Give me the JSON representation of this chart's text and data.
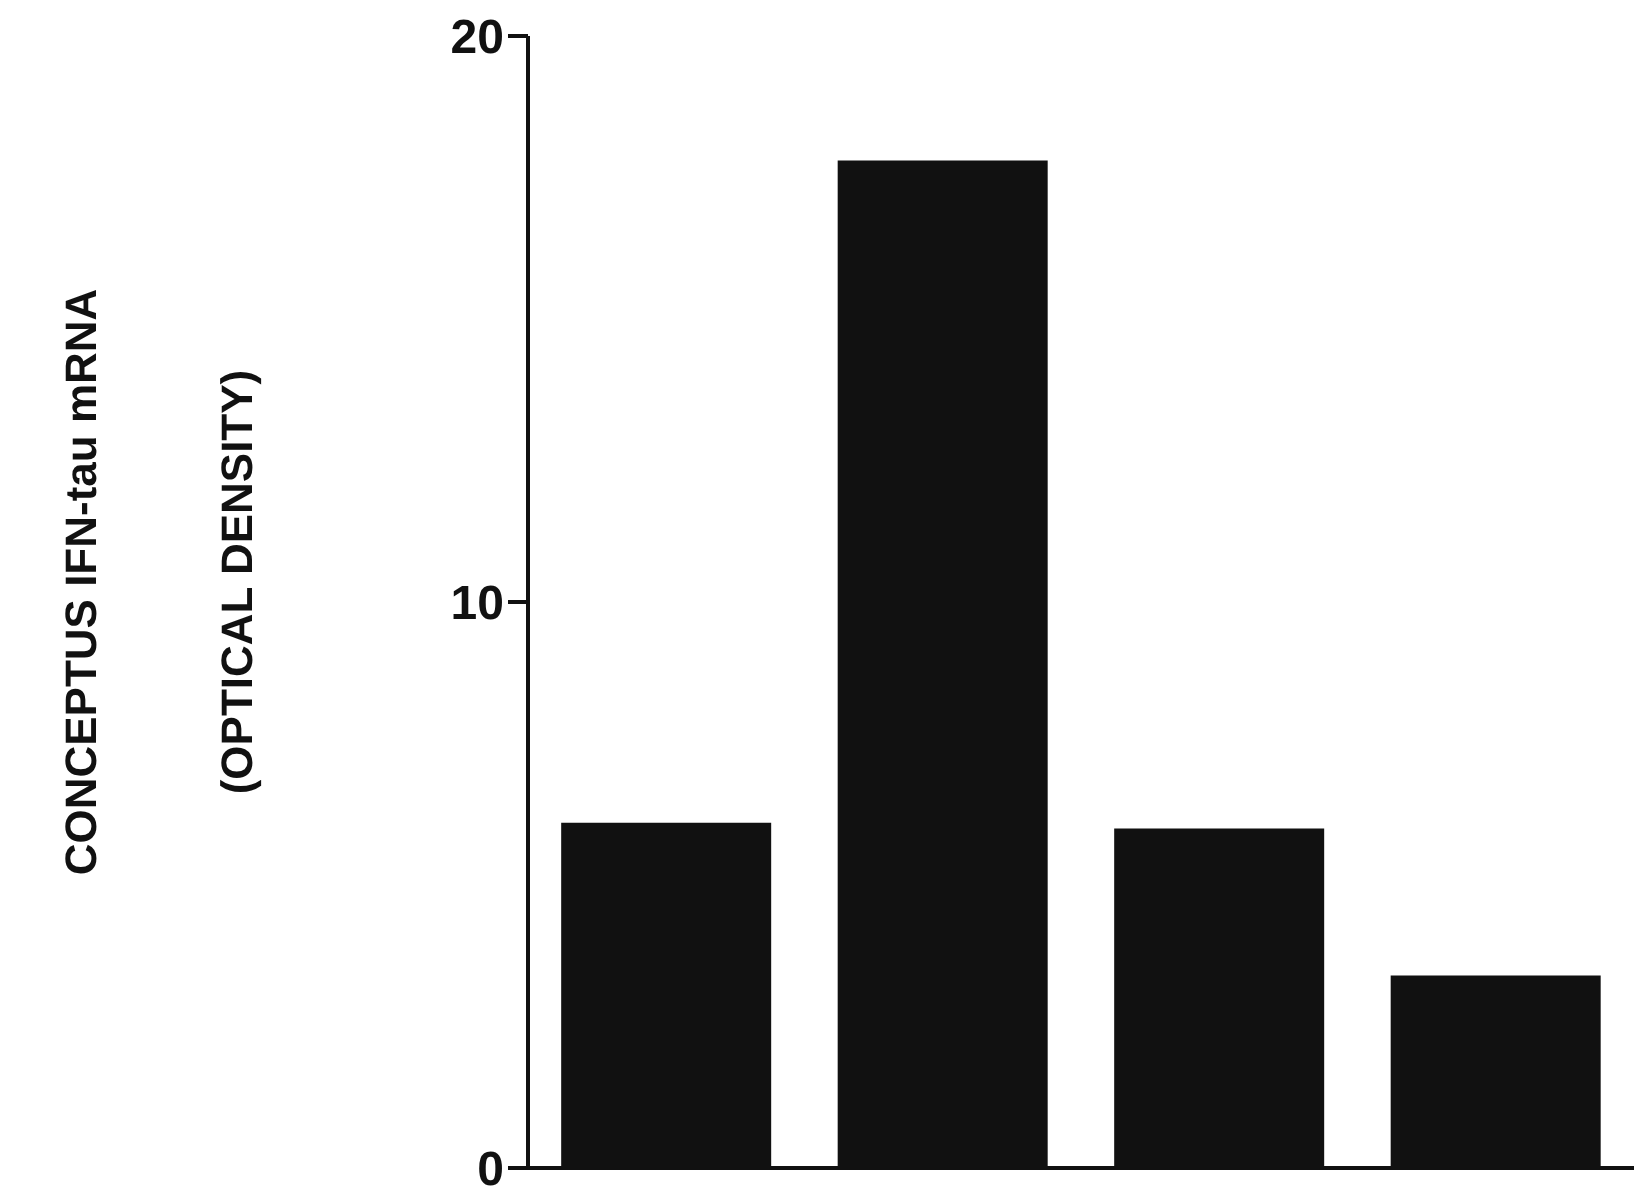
{
  "chart_data": {
    "type": "bar",
    "ylabel": "CONCEPTUS IFN-tau mRNA\n(OPTICAL DENSITY)",
    "categories": [
      null,
      null,
      null,
      null
    ],
    "values": [
      6.1,
      17.8,
      6.0,
      3.4
    ],
    "color": "#111111",
    "ylim": [
      0,
      20
    ],
    "yticks": [
      0,
      10,
      20
    ],
    "grid": false
  }
}
